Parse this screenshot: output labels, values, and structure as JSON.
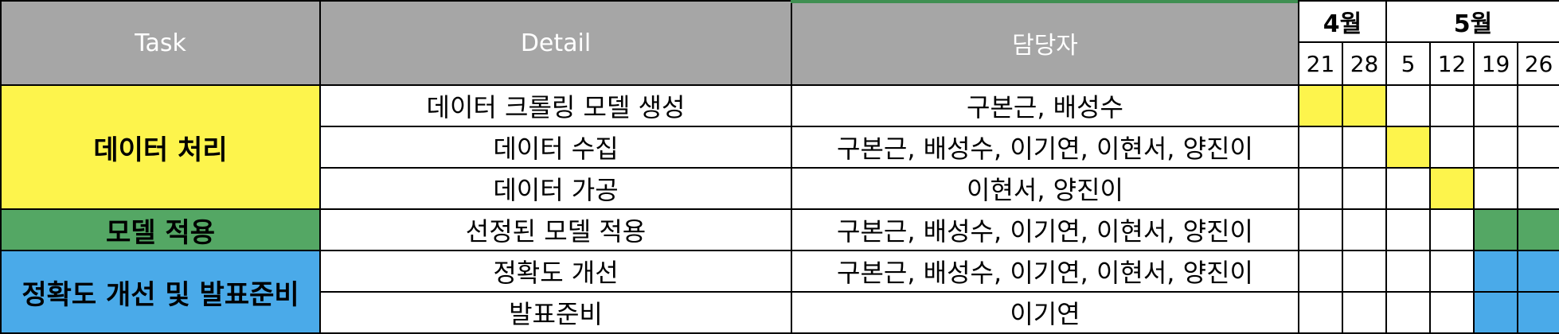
{
  "header": {
    "task_label": "Task",
    "detail_label": "Detail",
    "owner_label": "담당자"
  },
  "timeline": {
    "months": [
      {
        "label": "4월",
        "span": 2
      },
      {
        "label": "5월",
        "span": 4
      }
    ],
    "weeks": [
      "21",
      "28",
      "5",
      "12",
      "19",
      "26"
    ]
  },
  "colors": {
    "header_bg": "#a6a6a6",
    "yellow": "#fdf44c",
    "green": "#54a764",
    "blue": "#4aaae9",
    "white": "#ffffff"
  },
  "groups": [
    {
      "name": "데이터 처리",
      "color": "yellow",
      "rowspan": 3
    },
    {
      "name": "모델 적용",
      "color": "green",
      "rowspan": 1
    },
    {
      "name": "정확도 개선 및 발표준비",
      "color": "blue",
      "rowspan": 2
    }
  ],
  "rows": [
    {
      "detail": "데이터 크롤링 모델 생성",
      "owners": "구본근, 배성수",
      "cells": [
        "yellow",
        "yellow",
        "",
        "",
        "",
        ""
      ]
    },
    {
      "detail": "데이터 수집",
      "owners": "구본근, 배성수, 이기연, 이현서, 양진이",
      "cells": [
        "",
        "",
        "yellow",
        "",
        "",
        ""
      ]
    },
    {
      "detail": "데이터 가공",
      "owners": "이현서, 양진이",
      "cells": [
        "",
        "",
        "",
        "yellow",
        "",
        ""
      ]
    },
    {
      "detail": "선정된 모델 적용",
      "owners": "구본근, 배성수, 이기연, 이현서, 양진이",
      "cells": [
        "",
        "",
        "",
        "",
        "green",
        "green"
      ]
    },
    {
      "detail": "정확도 개선",
      "owners": "구본근, 배성수, 이기연, 이현서, 양진이",
      "cells": [
        "",
        "",
        "",
        "",
        "blue",
        "blue"
      ]
    },
    {
      "detail": "발표준비",
      "owners": "이기연",
      "cells": [
        "",
        "",
        "",
        "",
        "blue",
        "blue"
      ]
    }
  ]
}
